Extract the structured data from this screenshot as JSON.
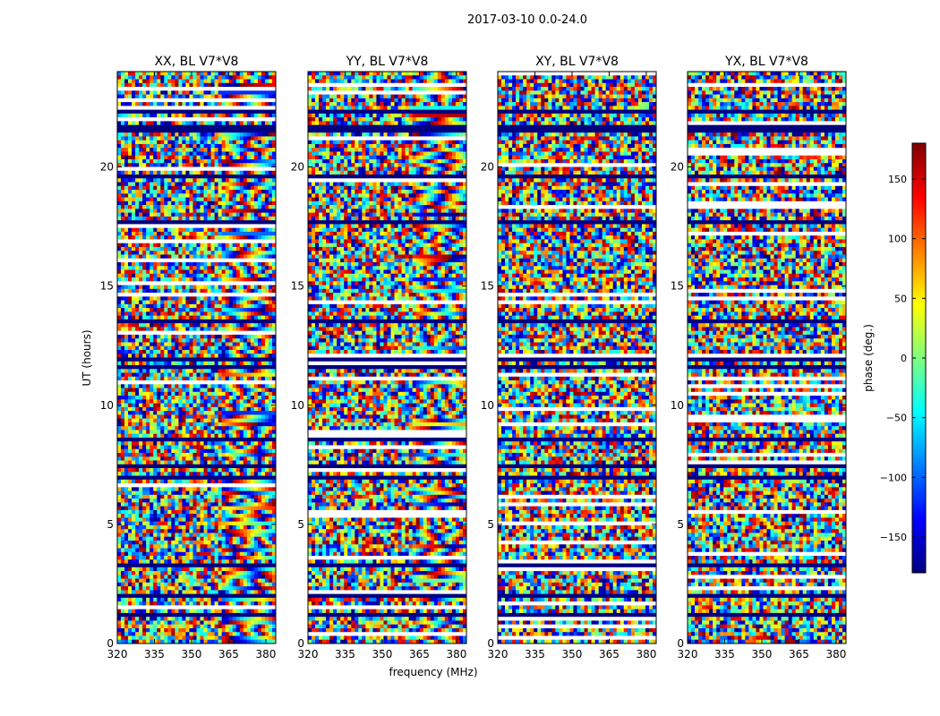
{
  "chart_data": {
    "type": "heatmap",
    "title": "2017-03-10 0.0-24.0",
    "xlabel": "frequency (MHz)",
    "ylabel": "UT (hours)",
    "xlim": [
      320,
      384
    ],
    "ylim": [
      0,
      24
    ],
    "x_ticks": [
      320,
      335,
      350,
      365,
      380
    ],
    "y_ticks": [
      0,
      5,
      10,
      15,
      20
    ],
    "panels": [
      {
        "title": "XX, BL V7*V8"
      },
      {
        "title": "YY, BL V7*V8"
      },
      {
        "title": "XY, BL V7*V8"
      },
      {
        "title": "YX, BL V7*V8"
      }
    ],
    "colorbar": {
      "label": "phase (deg.)",
      "range": [
        -180,
        180
      ],
      "ticks": [
        150,
        100,
        50,
        0,
        -50,
        -100,
        -150
      ],
      "tick_labels": [
        "150",
        "100",
        "50",
        "0",
        "−50",
        "−100",
        "−150"
      ],
      "colormap": "jet",
      "colors": [
        "#00007f",
        "#0000ff",
        "#007fff",
        "#00ffff",
        "#7fff7f",
        "#ffff00",
        "#ff7f00",
        "#ff0000",
        "#7f0000"
      ]
    }
  }
}
